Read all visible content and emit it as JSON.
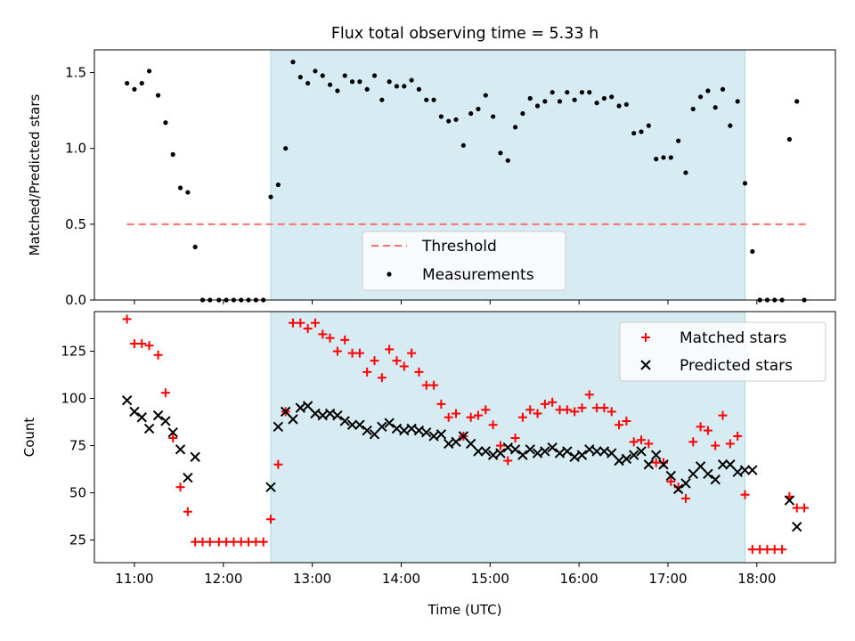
{
  "figure": {
    "title": "Flux total observing time = 5.33 h"
  },
  "colors": {
    "highlight": "#add8e6",
    "threshold": "#ff6e6e",
    "measurements": "#000000",
    "matched": "#ff0000",
    "predicted": "#000000"
  },
  "chart_data": [
    {
      "type": "scatter",
      "ylabel": "Matched/Predicted stars",
      "ylim": [
        0,
        1.65
      ],
      "yticks": [
        0.0,
        0.5,
        1.0,
        1.5
      ],
      "ytick_labels": [
        "0.0",
        "0.5",
        "1.0",
        "1.5"
      ],
      "xlim": [
        "10:33",
        "18:53"
      ],
      "grid": false,
      "legend_position": "bottom-center",
      "highlight_span": [
        "12:32",
        "17:52"
      ],
      "lines": [
        {
          "name": "Threshold",
          "style": "dashed",
          "y": 0.5,
          "x_range": [
            "10:55",
            "18:35"
          ]
        }
      ],
      "series": [
        {
          "name": "Measurements",
          "marker": "dot",
          "x": [
            "10:55",
            "11:00",
            "11:05",
            "11:10",
            "11:16",
            "11:21",
            "11:26",
            "11:31",
            "11:36",
            "11:41",
            "11:46",
            "11:51",
            "11:57",
            "12:02",
            "12:07",
            "12:12",
            "12:17",
            "12:22",
            "12:27",
            "12:32",
            "12:37",
            "12:42",
            "12:47",
            "12:52",
            "12:57",
            "13:02",
            "13:07",
            "13:12",
            "13:17",
            "13:22",
            "13:27",
            "13:32",
            "13:37",
            "13:42",
            "13:47",
            "13:52",
            "13:57",
            "14:02",
            "14:07",
            "14:12",
            "14:17",
            "14:22",
            "14:27",
            "14:32",
            "14:37",
            "14:42",
            "14:47",
            "14:52",
            "14:57",
            "15:02",
            "15:07",
            "15:12",
            "15:17",
            "15:22",
            "15:27",
            "15:32",
            "15:37",
            "15:42",
            "15:47",
            "15:52",
            "15:57",
            "16:02",
            "16:07",
            "16:12",
            "16:17",
            "16:22",
            "16:27",
            "16:32",
            "16:37",
            "16:42",
            "16:47",
            "16:52",
            "16:57",
            "17:02",
            "17:07",
            "17:12",
            "17:17",
            "17:22",
            "17:27",
            "17:32",
            "17:37",
            "17:42",
            "17:47",
            "17:52",
            "17:57",
            "18:02",
            "18:07",
            "18:12",
            "18:17",
            "18:22",
            "18:27",
            "18:32"
          ],
          "y": [
            1.43,
            1.39,
            1.43,
            1.51,
            1.35,
            1.17,
            0.96,
            0.74,
            0.71,
            0.35,
            0,
            0,
            0,
            0,
            0,
            0,
            0,
            0,
            0,
            0.68,
            0.76,
            1.0,
            1.57,
            1.47,
            1.43,
            1.51,
            1.48,
            1.42,
            1.38,
            1.48,
            1.44,
            1.44,
            1.39,
            1.48,
            1.32,
            1.44,
            1.41,
            1.41,
            1.45,
            1.39,
            1.32,
            1.32,
            1.21,
            1.18,
            1.19,
            1.02,
            1.23,
            1.26,
            1.35,
            1.21,
            0.97,
            0.92,
            1.14,
            1.23,
            1.33,
            1.28,
            1.31,
            1.37,
            1.31,
            1.37,
            1.32,
            1.37,
            1.37,
            1.3,
            1.33,
            1.34,
            1.28,
            1.29,
            1.1,
            1.11,
            1.15,
            0.93,
            0.94,
            0.94,
            1.05,
            0.84,
            1.26,
            1.34,
            1.38,
            1.27,
            1.39,
            1.15,
            1.31,
            0.77,
            0.32,
            0,
            0,
            0,
            0,
            1.06,
            1.31,
            0
          ]
        }
      ]
    },
    {
      "type": "scatter",
      "xlabel": "Time (UTC)",
      "ylabel": "Count",
      "ylim": [
        13,
        146
      ],
      "yticks": [
        25,
        50,
        75,
        100,
        125
      ],
      "ytick_labels": [
        "25",
        "50",
        "75",
        "100",
        "125"
      ],
      "xticks": [
        "11:00",
        "12:00",
        "13:00",
        "14:00",
        "15:00",
        "16:00",
        "17:00",
        "18:00"
      ],
      "xtick_labels": [
        "11:00",
        "12:00",
        "13:00",
        "14:00",
        "15:00",
        "16:00",
        "17:00",
        "18:00"
      ],
      "xlim": [
        "10:33",
        "18:53"
      ],
      "grid": false,
      "legend_position": "top-right",
      "highlight_span": [
        "12:32",
        "17:52"
      ],
      "series": [
        {
          "name": "Matched stars",
          "marker": "plus",
          "x": [
            "10:55",
            "11:00",
            "11:05",
            "11:10",
            "11:16",
            "11:21",
            "11:26",
            "11:31",
            "11:36",
            "11:41",
            "11:46",
            "11:51",
            "11:57",
            "12:02",
            "12:07",
            "12:12",
            "12:17",
            "12:22",
            "12:27",
            "12:32",
            "12:37",
            "12:42",
            "12:47",
            "12:52",
            "12:57",
            "13:02",
            "13:07",
            "13:12",
            "13:17",
            "13:22",
            "13:27",
            "13:32",
            "13:37",
            "13:42",
            "13:47",
            "13:52",
            "13:57",
            "14:02",
            "14:07",
            "14:12",
            "14:17",
            "14:22",
            "14:27",
            "14:32",
            "14:37",
            "14:42",
            "14:47",
            "14:52",
            "14:57",
            "15:02",
            "15:07",
            "15:12",
            "15:17",
            "15:22",
            "15:27",
            "15:32",
            "15:37",
            "15:42",
            "15:47",
            "15:52",
            "15:57",
            "16:02",
            "16:07",
            "16:12",
            "16:17",
            "16:22",
            "16:27",
            "16:32",
            "16:37",
            "16:42",
            "16:47",
            "16:52",
            "16:57",
            "17:02",
            "17:07",
            "17:12",
            "17:17",
            "17:22",
            "17:27",
            "17:32",
            "17:37",
            "17:42",
            "17:47",
            "17:52",
            "17:57",
            "18:02",
            "18:07",
            "18:12",
            "18:17",
            "18:22",
            "18:27",
            "18:32"
          ],
          "y": [
            142,
            129,
            129,
            128,
            123,
            103,
            79,
            53,
            40,
            24,
            24,
            24,
            24,
            24,
            24,
            24,
            24,
            24,
            24,
            36,
            65,
            93,
            140,
            140,
            137,
            140,
            134,
            132,
            125,
            131,
            124,
            124,
            114,
            120,
            111,
            126,
            120,
            117,
            124,
            114,
            107,
            107,
            97,
            90,
            92,
            80,
            90,
            91,
            94,
            86,
            75,
            67,
            79,
            90,
            94,
            92,
            97,
            98,
            94,
            94,
            93,
            95,
            102,
            95,
            95,
            93,
            86,
            88,
            77,
            78,
            76,
            66,
            66,
            56,
            53,
            47,
            77,
            85,
            83,
            75,
            91,
            76,
            80,
            49,
            20,
            20,
            20,
            20,
            20,
            48,
            42,
            42
          ]
        },
        {
          "name": "Predicted stars",
          "marker": "x",
          "x": [
            "10:55",
            "11:00",
            "11:05",
            "11:10",
            "11:16",
            "11:21",
            "11:26",
            "11:31",
            "11:36",
            "11:41",
            "12:32",
            "12:37",
            "12:42",
            "12:47",
            "12:52",
            "12:57",
            "13:02",
            "13:07",
            "13:12",
            "13:17",
            "13:22",
            "13:27",
            "13:32",
            "13:37",
            "13:42",
            "13:47",
            "13:52",
            "13:57",
            "14:02",
            "14:07",
            "14:12",
            "14:17",
            "14:22",
            "14:27",
            "14:32",
            "14:37",
            "14:42",
            "14:47",
            "14:52",
            "14:57",
            "15:02",
            "15:07",
            "15:12",
            "15:17",
            "15:22",
            "15:27",
            "15:32",
            "15:37",
            "15:42",
            "15:47",
            "15:52",
            "15:57",
            "16:02",
            "16:07",
            "16:12",
            "16:17",
            "16:22",
            "16:27",
            "16:32",
            "16:37",
            "16:42",
            "16:47",
            "16:52",
            "16:57",
            "17:02",
            "17:07",
            "17:12",
            "17:17",
            "17:22",
            "17:27",
            "17:32",
            "17:37",
            "17:42",
            "17:47",
            "17:52",
            "17:57",
            "18:22",
            "18:27"
          ],
          "y": [
            99,
            93,
            90,
            84,
            91,
            88,
            82,
            73,
            58,
            69,
            53,
            85,
            93,
            89,
            95,
            96,
            92,
            91,
            92,
            91,
            88,
            86,
            86,
            83,
            81,
            85,
            87,
            84,
            83,
            84,
            83,
            82,
            80,
            81,
            76,
            77,
            80,
            76,
            72,
            72,
            70,
            71,
            74,
            73,
            70,
            73,
            71,
            72,
            74,
            71,
            72,
            69,
            70,
            73,
            72,
            72,
            71,
            67,
            68,
            70,
            72,
            65,
            70,
            65,
            59,
            52,
            55,
            60,
            64,
            60,
            57,
            65,
            65,
            61,
            62,
            62,
            46,
            32
          ]
        }
      ]
    }
  ]
}
